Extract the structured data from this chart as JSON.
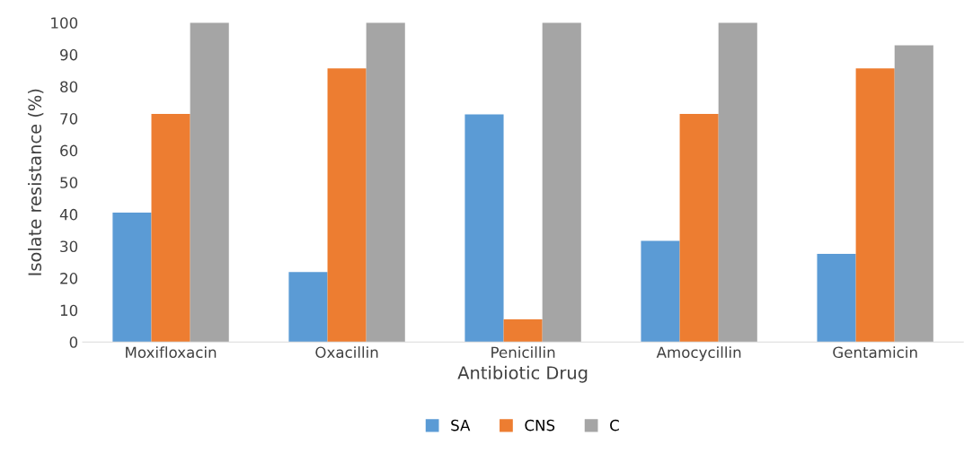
{
  "chart_data": {
    "type": "bar",
    "xlabel": "Antibiotic Drug",
    "ylabel": "Isolate resistance (%)",
    "categories": [
      "Moxifloxacin",
      "Oxacillin",
      "Penicillin",
      "Amocycillin",
      "Gentamicin"
    ],
    "series": [
      {
        "name": "SA",
        "color": "#5b9bd5",
        "values": [
          40.5,
          21.9,
          71.3,
          31.7,
          27.6
        ]
      },
      {
        "name": "CNS",
        "color": "#ed7d31",
        "values": [
          71.4,
          85.7,
          7.1,
          71.4,
          85.7
        ]
      },
      {
        "name": "C",
        "color": "#a5a5a5",
        "values": [
          100,
          100,
          100,
          100,
          92.9
        ]
      }
    ],
    "ylim": [
      0,
      100
    ],
    "yticks": [
      0,
      10,
      20,
      30,
      40,
      50,
      60,
      70,
      80,
      90,
      100
    ],
    "grid": false,
    "legend": "bottom"
  }
}
